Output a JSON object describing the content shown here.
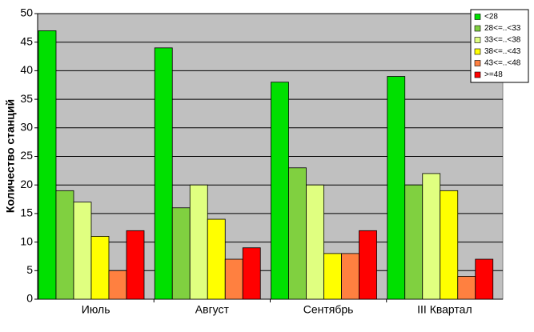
{
  "chart_data": {
    "type": "bar",
    "y_label": "Количество станций",
    "categories": [
      "Июль",
      "Август",
      "Сентябрь",
      "III Квартал"
    ],
    "series": [
      {
        "name": "<28",
        "color": "#00e000",
        "values": [
          47,
          44,
          38,
          39
        ]
      },
      {
        "name": "28<=..<33",
        "color": "#80d040",
        "values": [
          19,
          16,
          23,
          20
        ]
      },
      {
        "name": "33<=..<38",
        "color": "#e0ff80",
        "values": [
          17,
          20,
          20,
          22
        ]
      },
      {
        "name": "38<=..<43",
        "color": "#ffff00",
        "values": [
          11,
          14,
          8,
          19
        ]
      },
      {
        "name": "43<=..<48",
        "color": "#ff8040",
        "values": [
          5,
          7,
          8,
          4
        ]
      },
      {
        "name": ">=48",
        "color": "#ff0000",
        "values": [
          12,
          9,
          12,
          7
        ]
      }
    ],
    "ylim": [
      0,
      50
    ],
    "yticks": [
      0,
      5,
      10,
      15,
      20,
      25,
      30,
      35,
      40,
      45,
      50
    ],
    "grid": true,
    "legend": "top-right"
  }
}
